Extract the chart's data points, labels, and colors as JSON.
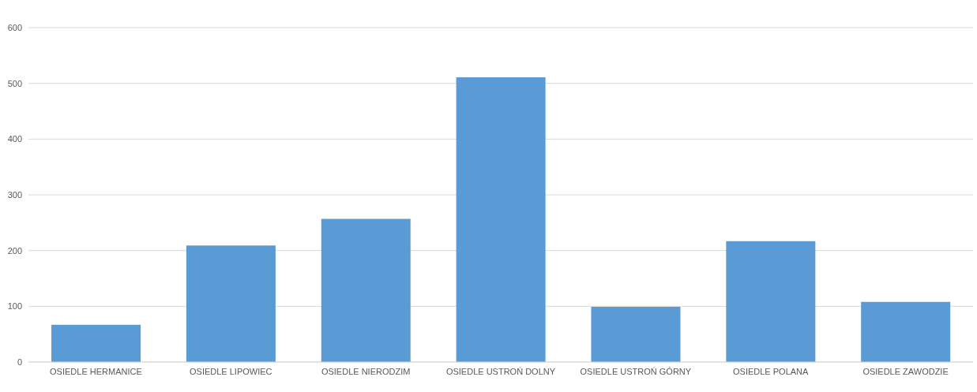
{
  "chart_data": {
    "type": "bar",
    "categories": [
      "OSIEDLE HERMANICE",
      "OSIEDLE LIPOWIEC",
      "OSIEDLE NIERODZIM",
      "OSIEDLE USTROŃ DOLNY",
      "OSIEDLE USTROŃ GÓRNY",
      "OSIEDLE POLANA",
      "OSIEDLE ZAWODZIE"
    ],
    "values": [
      67,
      209,
      257,
      511,
      99,
      217,
      108
    ],
    "color": "#5b9bd5",
    "ylim": [
      0,
      600
    ],
    "yticks": [
      0,
      100,
      200,
      300,
      400,
      500,
      600
    ],
    "grid": "y",
    "legend": false
  }
}
